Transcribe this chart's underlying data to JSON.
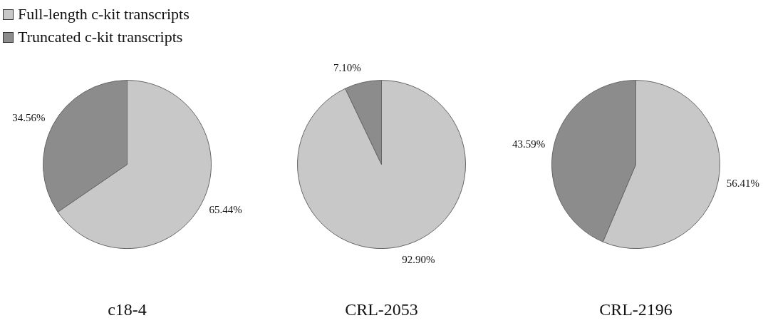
{
  "chart_data": [
    {
      "type": "pie",
      "title": "c18-4",
      "categories": [
        "Full-length c-kit transcripts",
        "Truncated c-kit transcripts"
      ],
      "values": [
        65.44,
        34.56
      ],
      "colors": [
        "#c8c8c8",
        "#8c8c8c"
      ],
      "value_labels": [
        "65.44%",
        "34.56%"
      ],
      "legend": "top left"
    },
    {
      "type": "pie",
      "title": "CRL-2053",
      "categories": [
        null,
        null
      ],
      "values": [
        92.9,
        7.1
      ],
      "colors": [
        "#c8c8c8",
        "#8c8c8c"
      ],
      "value_labels": [
        "92.90%",
        "7.10%"
      ]
    },
    {
      "type": "pie",
      "title": "CRL-2196",
      "categories": [
        null,
        null
      ],
      "values": [
        56.41,
        43.59
      ],
      "colors": [
        "#c8c8c8",
        "#8c8c8c"
      ],
      "value_labels": [
        "56.41%",
        "43.59%"
      ]
    }
  ]
}
